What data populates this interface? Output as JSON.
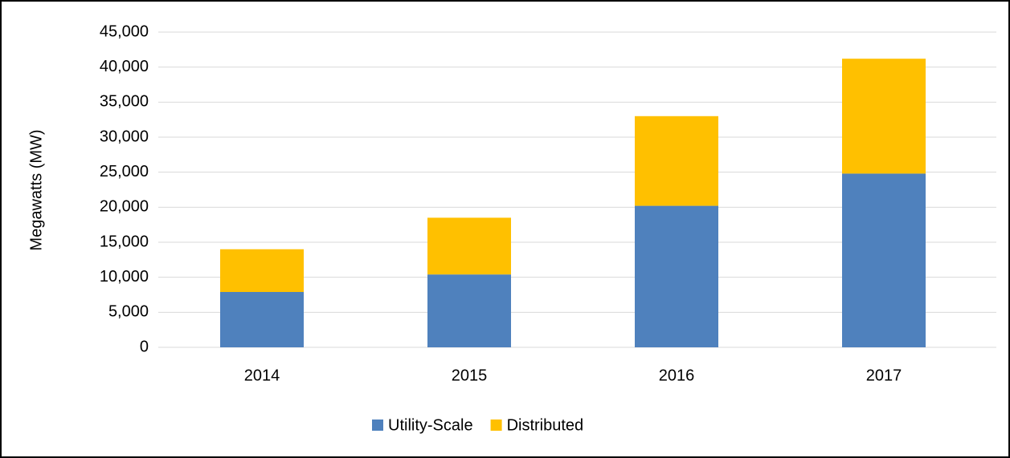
{
  "chart_data": {
    "type": "stacked-bar",
    "y_label": "Megawatts (MW)",
    "categories": [
      "2014",
      "2015",
      "2016",
      "2017"
    ],
    "series": [
      {
        "name": "Utility-Scale",
        "color": "#4f81bd",
        "values": [
          7900,
          10400,
          20200,
          24800
        ]
      },
      {
        "name": "Distributed",
        "color": "#ffc000",
        "values": [
          6100,
          8100,
          12800,
          16400
        ]
      }
    ],
    "ylim": [
      0,
      45000
    ],
    "yticks": [
      0,
      {
        "value": 5000,
        "label": "5,000"
      },
      {
        "value": 10000,
        "label": "10,000"
      },
      {
        "value": 15000,
        "label": "15,000"
      },
      {
        "value": 20000,
        "label": "20,000"
      },
      {
        "value": 25000,
        "label": "25,000"
      },
      {
        "value": 30000,
        "label": "30,000"
      },
      {
        "value": 35000,
        "label": "35,000"
      },
      {
        "value": 40000,
        "label": "40,000"
      },
      {
        "value": 45000,
        "label": "45,000"
      }
    ],
    "grid": true,
    "legend": "bottom"
  }
}
